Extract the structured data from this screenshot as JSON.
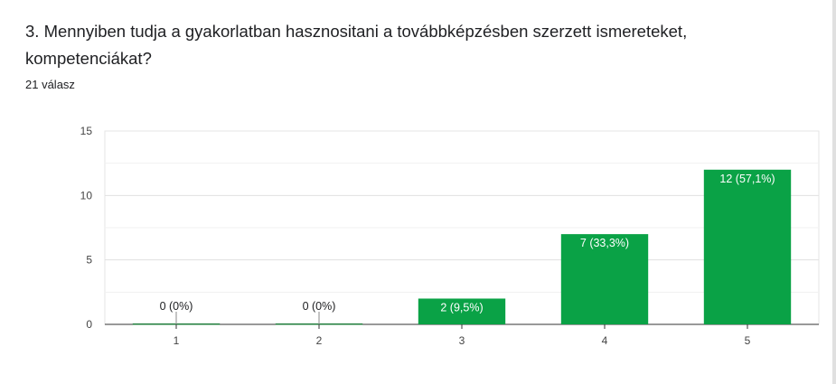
{
  "question": {
    "title": "3. Mennyiben tudja a gyakorlatban hasznositani a továbbképzésben szerzett ismereteket, kompetenciákat?",
    "response_count": "21 válasz"
  },
  "chart_data": {
    "type": "bar",
    "categories": [
      "1",
      "2",
      "3",
      "4",
      "5"
    ],
    "values": [
      0,
      0,
      2,
      7,
      12
    ],
    "data_labels": [
      "0 (0%)",
      "0 (0%)",
      "2 (9,5%)",
      "7 (33,3%)",
      "12 (57,1%)"
    ],
    "y_ticks": [
      "0",
      "5",
      "10",
      "15"
    ],
    "ylim": [
      0,
      15
    ],
    "grid": true,
    "bar_color": "#0aa246",
    "title": "",
    "xlabel": "",
    "ylabel": ""
  }
}
